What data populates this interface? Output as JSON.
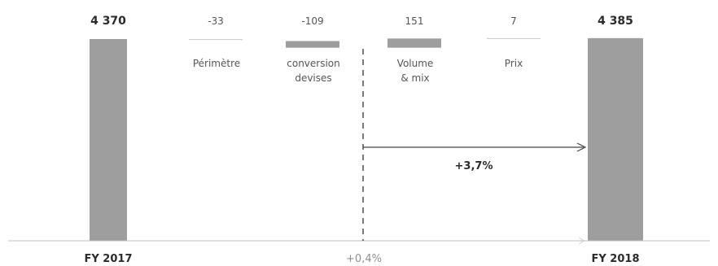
{
  "chart_data": {
    "type": "waterfall",
    "start": {
      "label": "FY 2017",
      "value": 4370,
      "value_label": "4 370"
    },
    "end": {
      "label": "FY 2018",
      "value": 4385,
      "value_label": "4 385"
    },
    "steps": [
      {
        "label_lines": [
          "Périmètre"
        ],
        "value": -33,
        "value_label": "-33"
      },
      {
        "label_lines": [
          "conversion",
          "devises"
        ],
        "value": -109,
        "value_label": "-109"
      },
      {
        "label_lines": [
          "Volume",
          "& mix"
        ],
        "value": 151,
        "value_label": "151"
      },
      {
        "label_lines": [
          "Prix"
        ],
        "value": 7,
        "value_label": "7"
      }
    ],
    "annotations": {
      "organic_growth": "+3,7%",
      "total_growth": "+0,4%"
    },
    "colors": {
      "bar": "#9e9e9e",
      "line": "#cfcfcf",
      "text": "#2b2b2b",
      "muted": "#8f8f8f",
      "axis": "#bdbdbd"
    }
  }
}
